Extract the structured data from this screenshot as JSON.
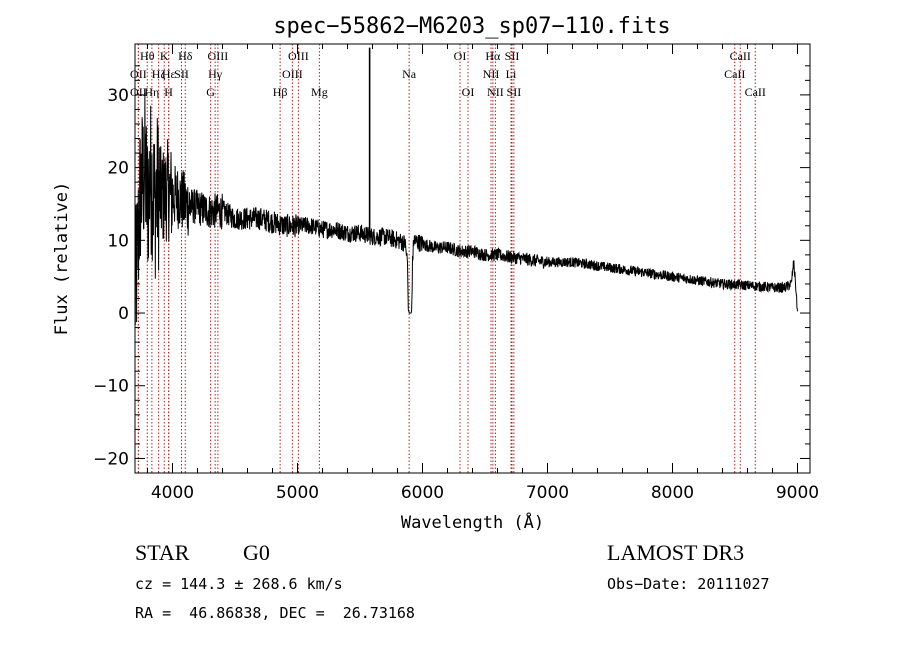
{
  "chart_data": {
    "type": "line",
    "title": "spec−55862−M6203_sp07−110.fits",
    "xlabel": "Wavelength (Å)",
    "ylabel": "Flux (relative)",
    "xlim": [
      3700,
      9100
    ],
    "ylim": [
      -22,
      37
    ],
    "xticks": [
      {
        "value": 4000,
        "label": "4000"
      },
      {
        "value": 5000,
        "label": "5000"
      },
      {
        "value": 6000,
        "label": "6000"
      },
      {
        "value": 7000,
        "label": "7000"
      },
      {
        "value": 8000,
        "label": "8000"
      },
      {
        "value": 9000,
        "label": "9000"
      }
    ],
    "yticks": [
      {
        "value": 30,
        "label": "30"
      },
      {
        "value": 20,
        "label": "20"
      },
      {
        "value": 10,
        "label": "10"
      },
      {
        "value": 0,
        "label": "0"
      },
      {
        "value": -10,
        "label": "−10"
      },
      {
        "value": -20,
        "label": "−20"
      }
    ],
    "spectrum_nodes": [
      [
        3700,
        2
      ],
      [
        3720,
        8
      ],
      [
        3740,
        16
      ],
      [
        3760,
        18
      ],
      [
        3780,
        20
      ],
      [
        3800,
        15
      ],
      [
        3820,
        19
      ],
      [
        3840,
        18
      ],
      [
        3860,
        15
      ],
      [
        3880,
        17
      ],
      [
        3900,
        16
      ],
      [
        3930,
        16
      ],
      [
        3960,
        17
      ],
      [
        4000,
        16
      ],
      [
        4050,
        16
      ],
      [
        4100,
        15
      ],
      [
        4200,
        14.5
      ],
      [
        4300,
        14
      ],
      [
        4400,
        14
      ],
      [
        4500,
        13
      ],
      [
        4600,
        13
      ],
      [
        4700,
        13
      ],
      [
        4800,
        12.5
      ],
      [
        4900,
        12
      ],
      [
        5000,
        12
      ],
      [
        5100,
        12
      ],
      [
        5200,
        11.5
      ],
      [
        5300,
        11.5
      ],
      [
        5400,
        11
      ],
      [
        5500,
        11
      ],
      [
        5600,
        10.5
      ],
      [
        5700,
        10.5
      ],
      [
        5800,
        10
      ],
      [
        5860,
        9.6
      ],
      [
        5880,
        7
      ],
      [
        5886,
        0.5
      ],
      [
        5894,
        0
      ],
      [
        5910,
        0
      ],
      [
        5914,
        0.5
      ],
      [
        5920,
        7
      ],
      [
        5930,
        10
      ],
      [
        6000,
        9.5
      ],
      [
        6100,
        9
      ],
      [
        6200,
        9
      ],
      [
        6300,
        8.5
      ],
      [
        6400,
        8.5
      ],
      [
        6500,
        8
      ],
      [
        6600,
        8
      ],
      [
        6700,
        7.7
      ],
      [
        6800,
        7.5
      ],
      [
        6900,
        7.2
      ],
      [
        7000,
        7
      ],
      [
        7200,
        7
      ],
      [
        7400,
        6.5
      ],
      [
        7600,
        6
      ],
      [
        7800,
        5.5
      ],
      [
        8000,
        5
      ],
      [
        8200,
        4.5
      ],
      [
        8400,
        4
      ],
      [
        8600,
        3.8
      ],
      [
        8800,
        3.5
      ],
      [
        8900,
        3.5
      ],
      [
        8950,
        4
      ],
      [
        8970,
        7
      ],
      [
        8985,
        4
      ],
      [
        9000,
        0
      ]
    ],
    "spike": {
      "x": 5577,
      "y_top": 36.5,
      "y_base": 11
    },
    "noise_note": "high-frequency noise amplitude decreasing with wavelength",
    "lines": [
      {
        "label": "Hθ",
        "wavelength": 3798,
        "row": 1
      },
      {
        "label": "OII",
        "wavelength": 3727,
        "row": 2
      },
      {
        "label": "OII",
        "wavelength": 3727,
        "row": 3
      },
      {
        "label": "Hη",
        "wavelength": 3835,
        "row": 3
      },
      {
        "label": "Hζ",
        "wavelength": 3889,
        "row": 2
      },
      {
        "label": "K",
        "wavelength": 3934,
        "row": 1
      },
      {
        "label": "H",
        "wavelength": 3969,
        "row": 3
      },
      {
        "label": "Hε",
        "wavelength": 3970,
        "row": 2
      },
      {
        "label": "SII",
        "wavelength": 4072,
        "row": 2
      },
      {
        "label": "Hδ",
        "wavelength": 4102,
        "row": 1
      },
      {
        "label": "OIII",
        "wavelength": 4363,
        "row": 1
      },
      {
        "label": "Hγ",
        "wavelength": 4341,
        "row": 2
      },
      {
        "label": "G",
        "wavelength": 4305,
        "row": 3
      },
      {
        "label": "Hβ",
        "wavelength": 4861,
        "row": 3
      },
      {
        "label": "OIII",
        "wavelength": 4959,
        "row": 2
      },
      {
        "label": "OIII",
        "wavelength": 5007,
        "row": 1
      },
      {
        "label": "Mg",
        "wavelength": 5175,
        "row": 3
      },
      {
        "label": "Na",
        "wavelength": 5893,
        "row": 2
      },
      {
        "label": "OI",
        "wavelength": 6300,
        "row": 1
      },
      {
        "label": "OI",
        "wavelength": 6364,
        "row": 3
      },
      {
        "label": "NII",
        "wavelength": 6548,
        "row": 2
      },
      {
        "label": "Hα",
        "wavelength": 6563,
        "row": 1
      },
      {
        "label": "NII",
        "wavelength": 6583,
        "row": 3
      },
      {
        "label": "SII",
        "wavelength": 6716,
        "row": 1
      },
      {
        "label": "SII",
        "wavelength": 6731,
        "row": 3
      },
      {
        "label": "Li",
        "wavelength": 6708,
        "row": 2
      },
      {
        "label": "CaII",
        "wavelength": 8498,
        "row": 2
      },
      {
        "label": "CaII",
        "wavelength": 8542,
        "row": 1
      },
      {
        "label": "CaII",
        "wavelength": 8662,
        "row": 3
      }
    ],
    "colors": {
      "spectrum": "#000000",
      "lines": "#b22222",
      "axes": "#000000"
    }
  },
  "info": {
    "object_class": "STAR",
    "subclass": "G0",
    "survey": "LAMOST DR3",
    "cz": "cz = 144.3 ± 268.6 km/s",
    "obs_date": "Obs−Date: 20111027",
    "coords": "RA =  46.86838, DEC =  26.73168"
  }
}
